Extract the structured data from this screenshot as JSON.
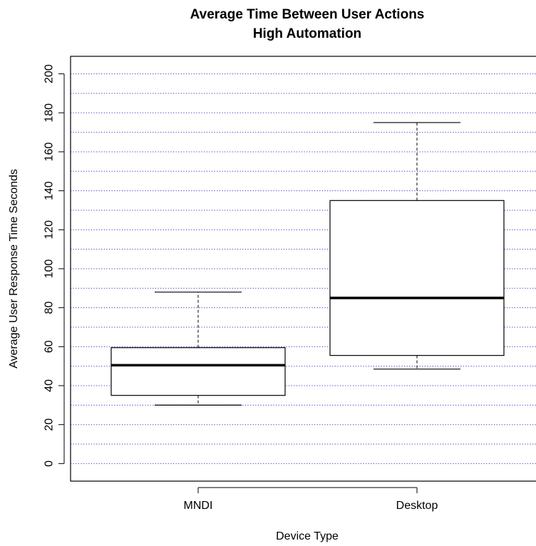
{
  "chart_data": {
    "type": "boxplot",
    "title": [
      "Average Time Between User Actions",
      "High Automation"
    ],
    "xlabel": "Device Type",
    "ylabel": "Average User Response Time Seconds",
    "ylim": [
      -9,
      209
    ],
    "yticks": [
      0,
      20,
      40,
      60,
      80,
      100,
      120,
      140,
      160,
      180,
      200
    ],
    "grid": {
      "horizontal_step": 10,
      "color": "#3333cc",
      "style": "dotted"
    },
    "categories": [
      "MNDI",
      "Desktop"
    ],
    "boxes": [
      {
        "name": "MNDI",
        "whisker_low": 30,
        "q1": 35,
        "median": 50.5,
        "q3": 59.5,
        "whisker_high": 88
      },
      {
        "name": "Desktop",
        "whisker_low": 48.5,
        "q1": 55.5,
        "median": 85,
        "q3": 135,
        "whisker_high": 175
      }
    ]
  }
}
